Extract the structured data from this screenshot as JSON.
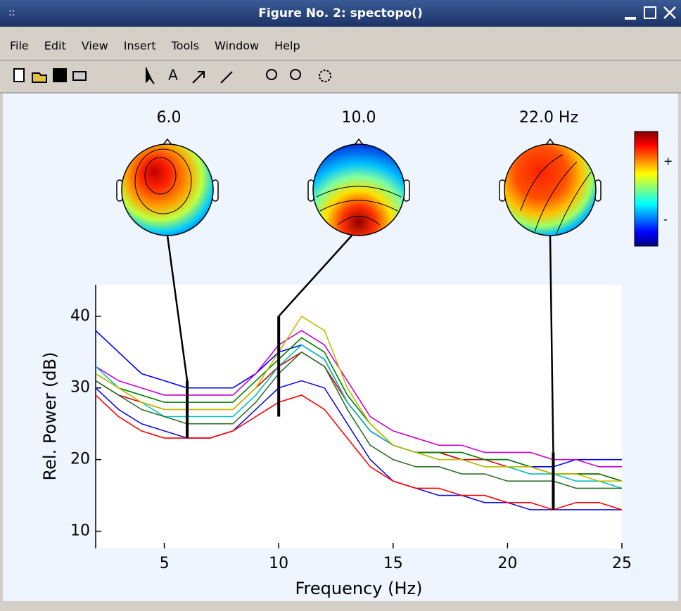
{
  "window": {
    "title": "Figure No. 2: spectopo()",
    "menu": [
      "File",
      "Edit",
      "View",
      "Insert",
      "Tools",
      "Window",
      "Help"
    ]
  },
  "chart_data": {
    "type": "line",
    "x": [
      2,
      3,
      4,
      5,
      6,
      7,
      8,
      9,
      10,
      11,
      12,
      13,
      14,
      15,
      16,
      17,
      18,
      19,
      20,
      21,
      22,
      23,
      24,
      25
    ],
    "series": [
      {
        "color": "#0000ff",
        "values": [
          38,
          35,
          32,
          31,
          30,
          30,
          30,
          32,
          35,
          36,
          34,
          28,
          24,
          22,
          21,
          21,
          20,
          20,
          20,
          19,
          19,
          20,
          20,
          20
        ]
      },
      {
        "color": "#1010e0",
        "values": [
          30,
          27,
          25,
          24,
          23,
          23,
          24,
          27,
          30,
          31,
          30,
          25,
          20,
          17,
          16,
          15,
          15,
          14,
          14,
          13,
          13,
          13,
          13,
          13
        ]
      },
      {
        "color": "#ff0000",
        "values": [
          29,
          26,
          24,
          23,
          23,
          23,
          24,
          26,
          28,
          29,
          27,
          23,
          19,
          17,
          16,
          16,
          15,
          15,
          14,
          14,
          13,
          14,
          14,
          13
        ]
      },
      {
        "color": "#e00000",
        "values": [
          31,
          29,
          28,
          27,
          27,
          27,
          27,
          30,
          33,
          35,
          33,
          28,
          24,
          22,
          21,
          21,
          20,
          20,
          19,
          19,
          18,
          18,
          18,
          17
        ]
      },
      {
        "color": "#008000",
        "values": [
          32,
          30,
          29,
          28,
          28,
          28,
          28,
          31,
          34,
          37,
          35,
          29,
          25,
          22,
          21,
          21,
          21,
          20,
          20,
          19,
          18,
          18,
          18,
          17
        ]
      },
      {
        "color": "#cc00cc",
        "values": [
          33,
          31,
          30,
          29,
          29,
          29,
          29,
          32,
          36,
          38,
          36,
          31,
          26,
          24,
          23,
          22,
          22,
          21,
          21,
          21,
          20,
          20,
          19,
          19
        ]
      },
      {
        "color": "#00bfbf",
        "values": [
          33,
          30,
          28,
          26,
          26,
          26,
          26,
          29,
          33,
          36,
          34,
          28,
          24,
          22,
          21,
          20,
          20,
          19,
          19,
          18,
          18,
          17,
          17,
          16
        ]
      },
      {
        "color": "#bfbf00",
        "values": [
          32,
          30,
          28,
          27,
          27,
          27,
          27,
          30,
          35,
          40,
          38,
          30,
          25,
          22,
          21,
          20,
          20,
          19,
          19,
          19,
          18,
          18,
          17,
          17
        ]
      },
      {
        "color": "#2f6f2f",
        "values": [
          31,
          29,
          27,
          26,
          25,
          25,
          25,
          28,
          32,
          35,
          33,
          27,
          22,
          20,
          19,
          19,
          18,
          18,
          17,
          17,
          17,
          16,
          16,
          16
        ]
      }
    ],
    "xlim": [
      2,
      25
    ],
    "ylim": [
      7.6,
      44.4
    ],
    "xticks": [
      5,
      10,
      15,
      20,
      25
    ],
    "yticks": [
      10,
      20,
      30,
      40
    ],
    "xlabel": "Frequency (Hz)",
    "ylabel": "Rel. Power (dB)",
    "annotations": [
      {
        "x": 6,
        "label": "6.0",
        "range": [
          23,
          31
        ]
      },
      {
        "x": 10,
        "label": "10.0",
        "range": [
          26,
          40
        ]
      },
      {
        "x": 22,
        "label": "22.0 Hz",
        "range": [
          13,
          21
        ]
      }
    ],
    "colorbar": {
      "labels": [
        "+",
        "-"
      ]
    }
  }
}
